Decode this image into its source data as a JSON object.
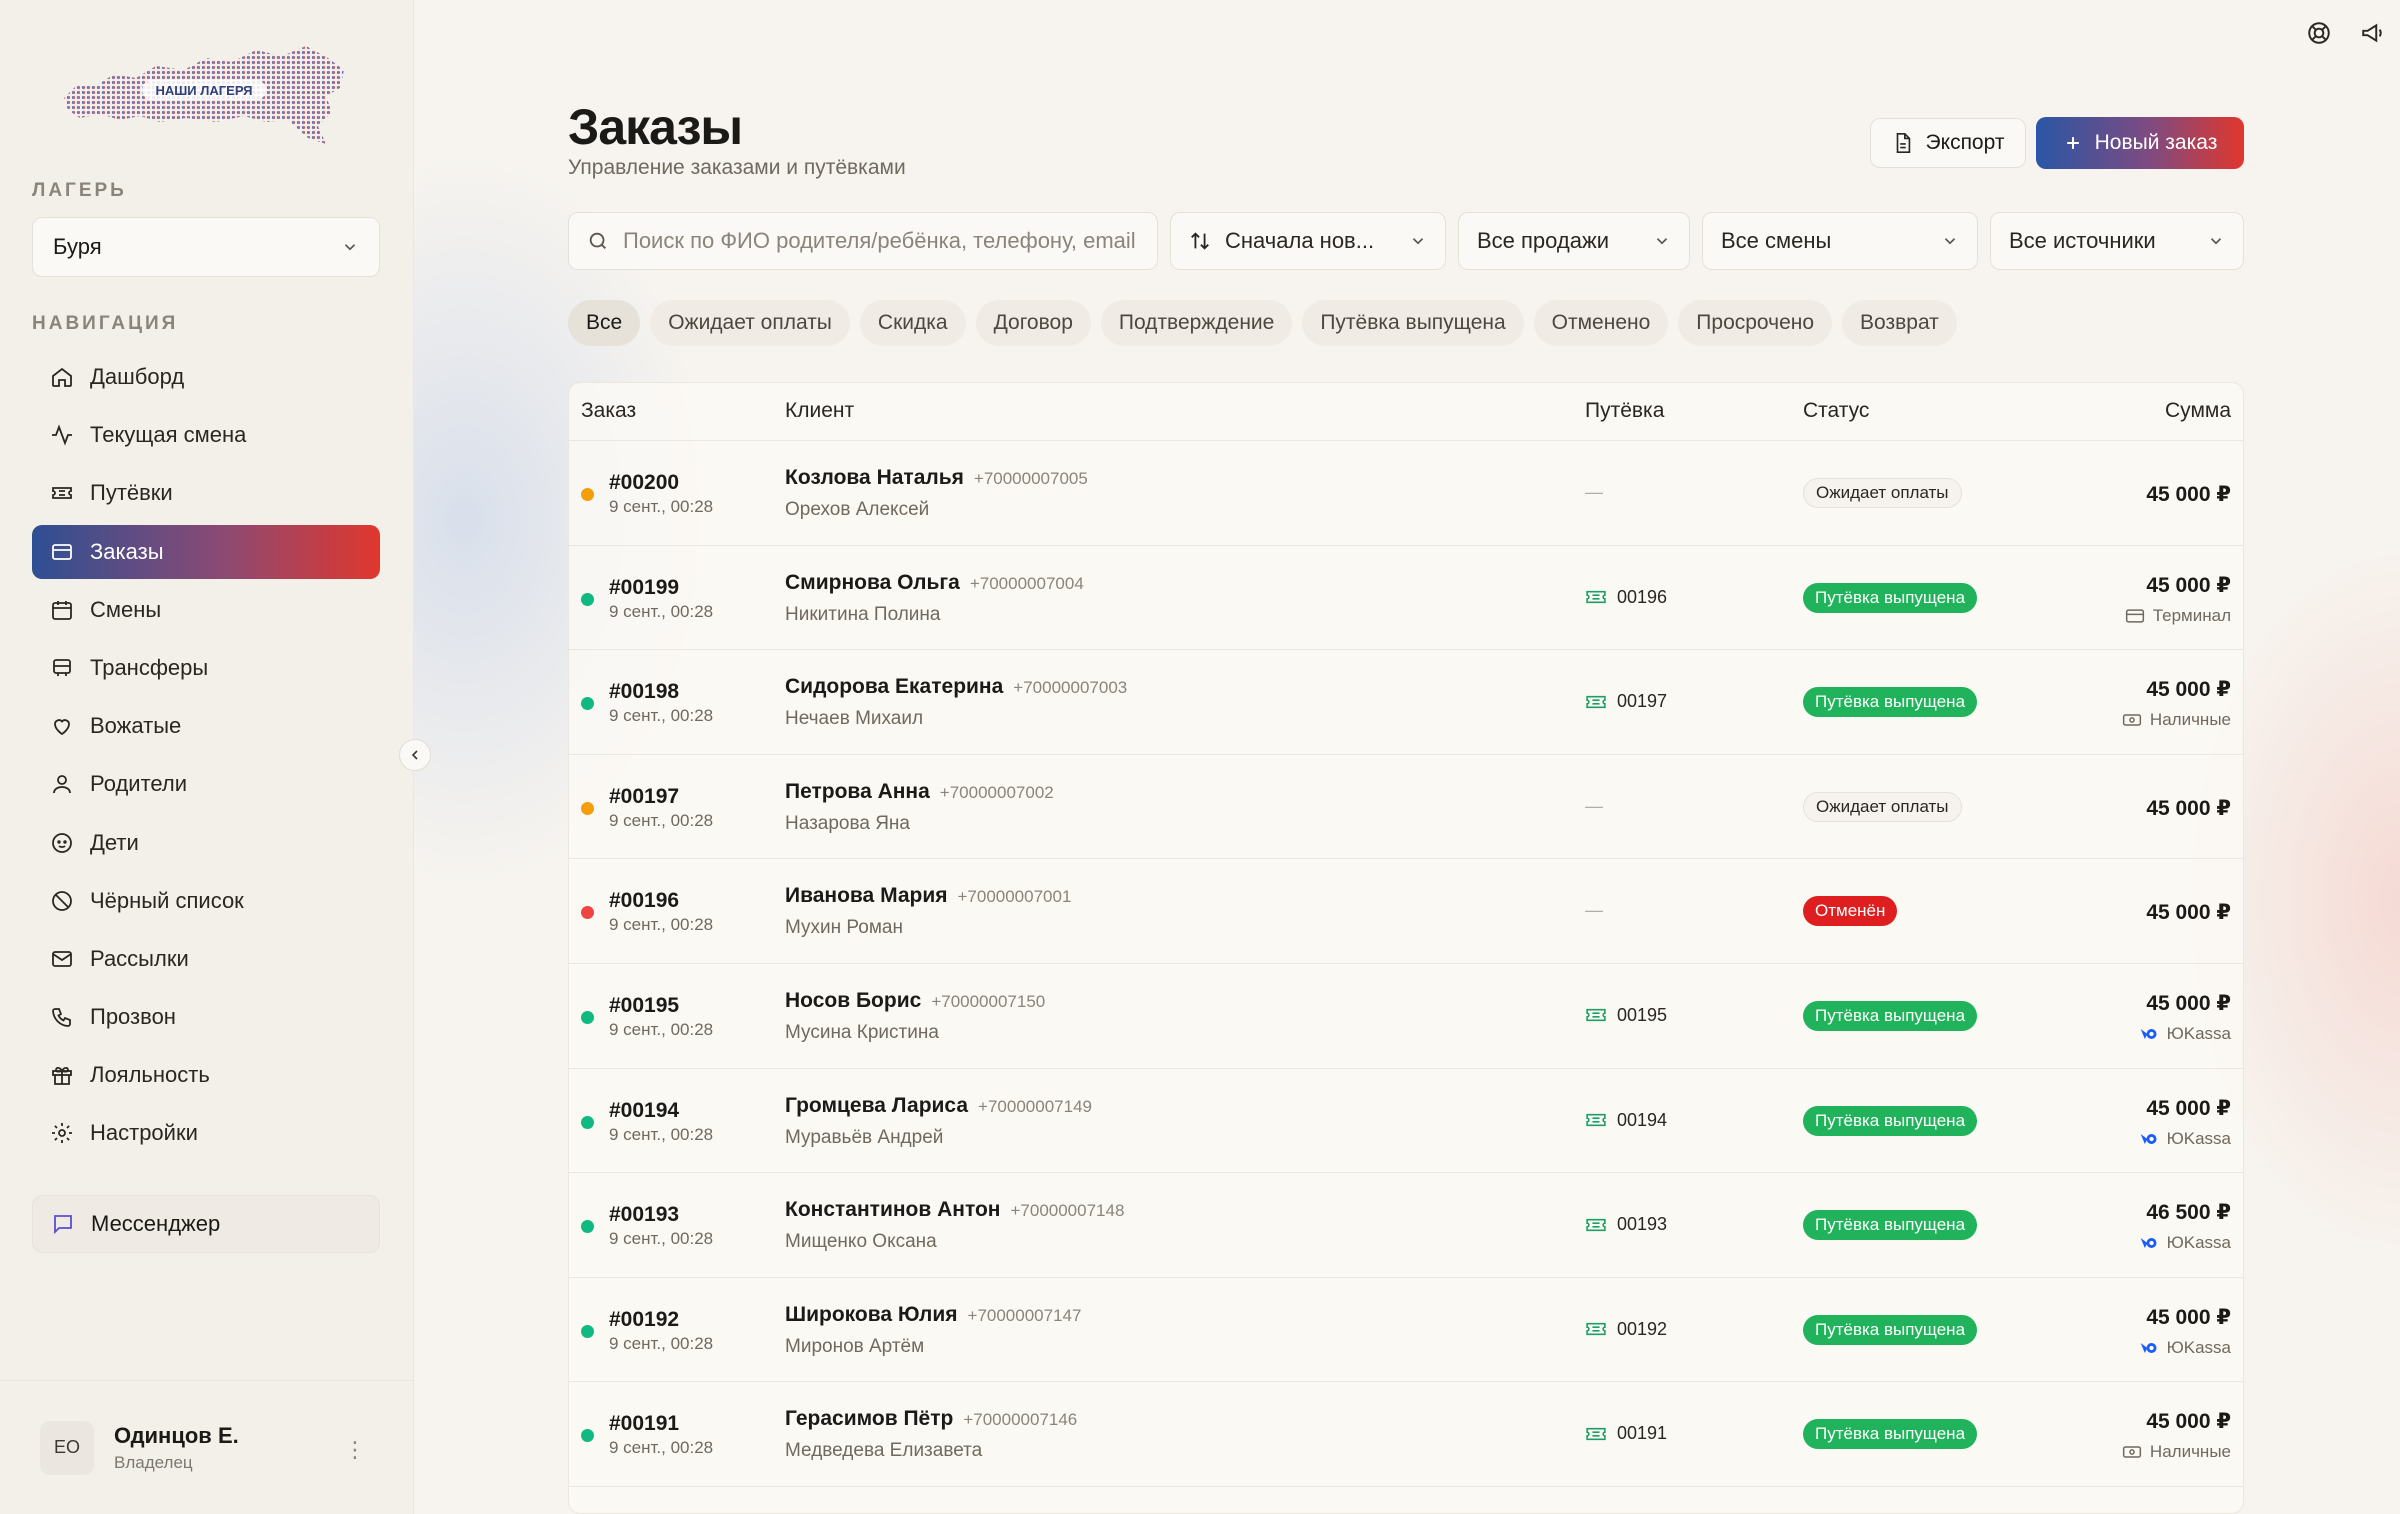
{
  "sidebar": {
    "logo_text": "НАШИ ЛАГЕРЯ",
    "camp_label": "ЛАГЕРЬ",
    "camp_value": "Буря",
    "nav_label": "НАВИГАЦИЯ",
    "items": [
      {
        "label": "Дашборд",
        "icon": "home-icon"
      },
      {
        "label": "Текущая смена",
        "icon": "activity-icon"
      },
      {
        "label": "Путёвки",
        "icon": "ticket-icon"
      },
      {
        "label": "Заказы",
        "icon": "card-icon",
        "active": true
      },
      {
        "label": "Смены",
        "icon": "calendar-icon"
      },
      {
        "label": "Трансферы",
        "icon": "bus-icon"
      },
      {
        "label": "Вожатые",
        "icon": "heart-hand-icon"
      },
      {
        "label": "Родители",
        "icon": "user-icon"
      },
      {
        "label": "Дети",
        "icon": "child-icon"
      },
      {
        "label": "Чёрный список",
        "icon": "ban-icon"
      },
      {
        "label": "Рассылки",
        "icon": "mail-icon"
      },
      {
        "label": "Прозвон",
        "icon": "phone-icon"
      },
      {
        "label": "Лояльность",
        "icon": "gift-icon"
      },
      {
        "label": "Настройки",
        "icon": "gear-icon"
      }
    ],
    "messenger": "Мессенджер",
    "user": {
      "initials": "ЕО",
      "name": "Одинцов Е.",
      "role": "Владелец"
    }
  },
  "header": {
    "title": "Заказы",
    "subtitle": "Управление заказами и путёвками",
    "export_label": "Экспорт",
    "new_order_label": "Новый заказ"
  },
  "filters": {
    "search_placeholder": "Поиск по ФИО родителя/ребёнка, телефону, email",
    "sort": "Сначала нов...",
    "sales": "Все продажи",
    "shifts": "Все смены",
    "sources": "Все источники"
  },
  "chips": [
    "Все",
    "Ожидает оплаты",
    "Скидка",
    "Договор",
    "Подтверждение",
    "Путёвка выпущена",
    "Отменено",
    "Просрочено",
    "Возврат"
  ],
  "table": {
    "columns": {
      "order": "Заказ",
      "client": "Клиент",
      "voucher": "Путёвка",
      "status": "Статус",
      "amount": "Сумма"
    },
    "rows": [
      {
        "id": "#00200",
        "date": "9 сент., 00:28",
        "dot": "#f59e0b",
        "client": "Козлова Наталья",
        "phone": "+70000007005",
        "child": "Орехов Алексей",
        "voucher": "—",
        "status": "Ожидает оплаты",
        "status_type": "pending",
        "amount": "45 000 ₽",
        "payment": ""
      },
      {
        "id": "#00199",
        "date": "9 сент., 00:28",
        "dot": "#10b981",
        "client": "Смирнова Ольга",
        "phone": "+70000007004",
        "child": "Никитина Полина",
        "voucher": "00196",
        "status": "Путёвка выпущена",
        "status_type": "issued",
        "amount": "45 000 ₽",
        "payment": "Терминал",
        "payment_icon": "card-icon"
      },
      {
        "id": "#00198",
        "date": "9 сент., 00:28",
        "dot": "#10b981",
        "client": "Сидорова Екатерина",
        "phone": "+70000007003",
        "child": "Нечаев Михаил",
        "voucher": "00197",
        "status": "Путёвка выпущена",
        "status_type": "issued",
        "amount": "45 000 ₽",
        "payment": "Наличные",
        "payment_icon": "cash-icon"
      },
      {
        "id": "#00197",
        "date": "9 сент., 00:28",
        "dot": "#f59e0b",
        "client": "Петрова Анна",
        "phone": "+70000007002",
        "child": "Назарова Яна",
        "voucher": "—",
        "status": "Ожидает оплаты",
        "status_type": "pending",
        "amount": "45 000 ₽",
        "payment": ""
      },
      {
        "id": "#00196",
        "date": "9 сент., 00:28",
        "dot": "#ef4444",
        "client": "Иванова Мария",
        "phone": "+70000007001",
        "child": "Мухин Роман",
        "voucher": "—",
        "status": "Отменён",
        "status_type": "cancel",
        "amount": "45 000 ₽",
        "payment": ""
      },
      {
        "id": "#00195",
        "date": "9 сент., 00:28",
        "dot": "#10b981",
        "client": "Носов Борис",
        "phone": "+70000007150",
        "child": "Мусина Кристина",
        "voucher": "00195",
        "status": "Путёвка выпущена",
        "status_type": "issued",
        "amount": "45 000 ₽",
        "payment": "ЮKassa",
        "payment_icon": "yookassa-icon"
      },
      {
        "id": "#00194",
        "date": "9 сент., 00:28",
        "dot": "#10b981",
        "client": "Громцева Лариса",
        "phone": "+70000007149",
        "child": "Муравьёв Андрей",
        "voucher": "00194",
        "status": "Путёвка выпущена",
        "status_type": "issued",
        "amount": "45 000 ₽",
        "payment": "ЮKassa",
        "payment_icon": "yookassa-icon"
      },
      {
        "id": "#00193",
        "date": "9 сент., 00:28",
        "dot": "#10b981",
        "client": "Константинов Антон",
        "phone": "+70000007148",
        "child": "Мищенко Оксана",
        "voucher": "00193",
        "status": "Путёвка выпущена",
        "status_type": "issued",
        "amount": "46 500 ₽",
        "payment": "ЮKassa",
        "payment_icon": "yookassa-icon"
      },
      {
        "id": "#00192",
        "date": "9 сент., 00:28",
        "dot": "#10b981",
        "client": "Широкова Юлия",
        "phone": "+70000007147",
        "child": "Миронов Артём",
        "voucher": "00192",
        "status": "Путёвка выпущена",
        "status_type": "issued",
        "amount": "45 000 ₽",
        "payment": "ЮKassa",
        "payment_icon": "yookassa-icon"
      },
      {
        "id": "#00191",
        "date": "9 сент., 00:28",
        "dot": "#10b981",
        "client": "Герасимов Пётр",
        "phone": "+70000007146",
        "child": "Медведева Елизавета",
        "voucher": "00191",
        "status": "Путёвка выпущена",
        "status_type": "issued",
        "amount": "45 000 ₽",
        "payment": "Наличные",
        "payment_icon": "cash-icon"
      }
    ]
  }
}
